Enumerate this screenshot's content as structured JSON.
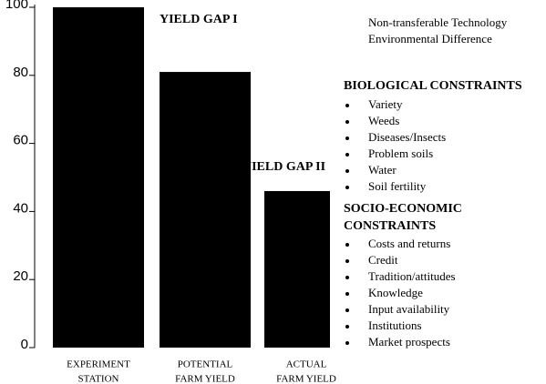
{
  "chart_data": {
    "type": "bar",
    "categories": [
      [
        "EXPERIMENT",
        "STATION"
      ],
      [
        "POTENTIAL",
        "FARM YIELD"
      ],
      [
        "ACTUAL",
        "FARM YIELD"
      ]
    ],
    "values": [
      100,
      81,
      46
    ],
    "color": "#000000",
    "ylim": [
      0,
      100
    ],
    "yticks": [
      0,
      20,
      40,
      60,
      80,
      100
    ],
    "annotations": {
      "gap1": "YIELD GAP I",
      "gap2": "YIELD GAP II",
      "gap1_notes": [
        "Non-transferable Technology",
        "Environmental Difference"
      ],
      "biological": {
        "title": "BIOLOGICAL CONSTRAINTS",
        "items": [
          "Variety",
          "Weeds",
          "Diseases/Insects",
          "Problem soils",
          "Water",
          "Soil fertility"
        ]
      },
      "socio": {
        "title": [
          "SOCIO-ECONOMIC",
          "CONSTRAINTS"
        ],
        "items": [
          "Costs and returns",
          "Credit",
          "Tradition/attitudes",
          "Knowledge",
          "Input availability",
          "Institutions",
          "Market prospects"
        ]
      }
    }
  }
}
